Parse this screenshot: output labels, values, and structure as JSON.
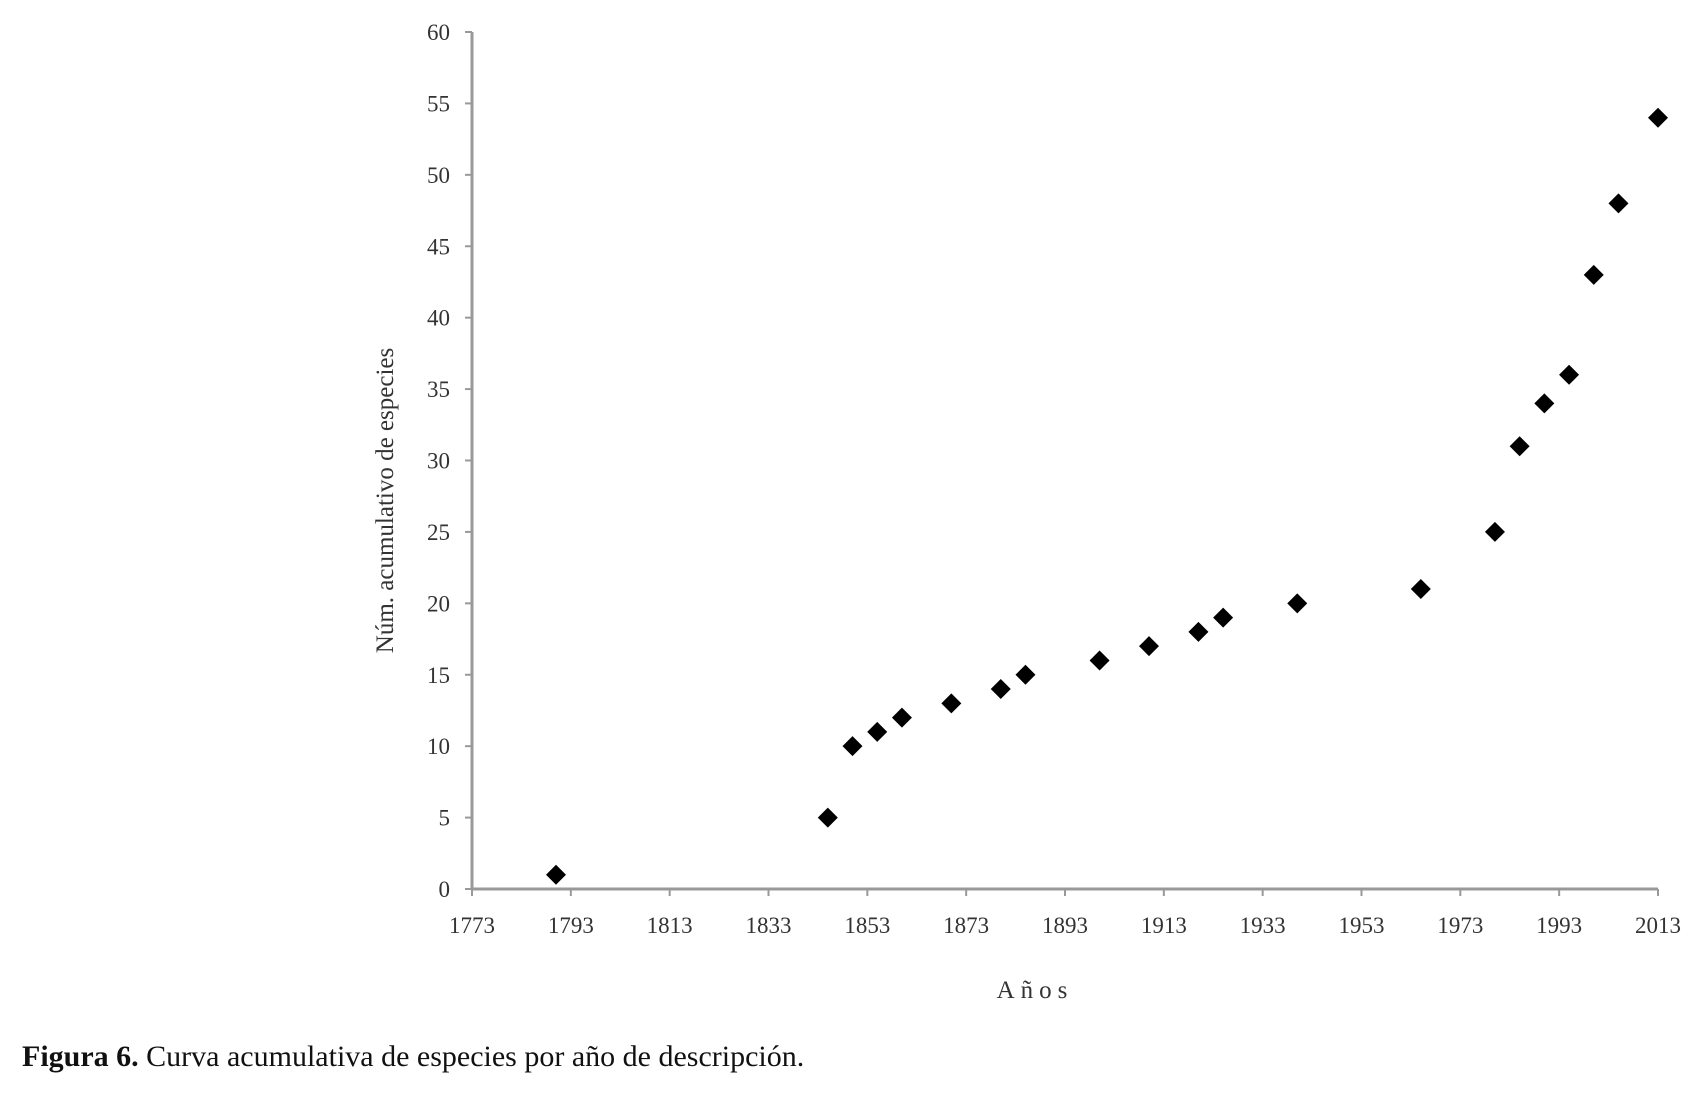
{
  "chart_data": {
    "type": "scatter",
    "title": "",
    "xlabel": "Años",
    "ylabel": "Núm. acumulativo de especies",
    "xlim": [
      1773,
      2013
    ],
    "ylim": [
      0,
      60
    ],
    "xticks": [
      1773,
      1793,
      1813,
      1833,
      1853,
      1873,
      1893,
      1913,
      1933,
      1953,
      1973,
      1993,
      2013
    ],
    "yticks": [
      0,
      5,
      10,
      15,
      20,
      25,
      30,
      35,
      40,
      45,
      50,
      55,
      60
    ],
    "grid": false,
    "marker": "diamond",
    "marker_color": "#000000",
    "axis_color": "#999999",
    "x": [
      1790,
      1845,
      1850,
      1855,
      1860,
      1870,
      1880,
      1885,
      1900,
      1910,
      1920,
      1925,
      1940,
      1965,
      1980,
      1985,
      1990,
      1995,
      2000,
      2005,
      2013
    ],
    "y": [
      1,
      5,
      10,
      11,
      12,
      13,
      14,
      15,
      16,
      17,
      18,
      19,
      20,
      21,
      25,
      31,
      34,
      36,
      43,
      48,
      54
    ]
  },
  "caption": {
    "label": "Figura 6.",
    "text": " Curva acumulativa de especies por año de descripción."
  }
}
